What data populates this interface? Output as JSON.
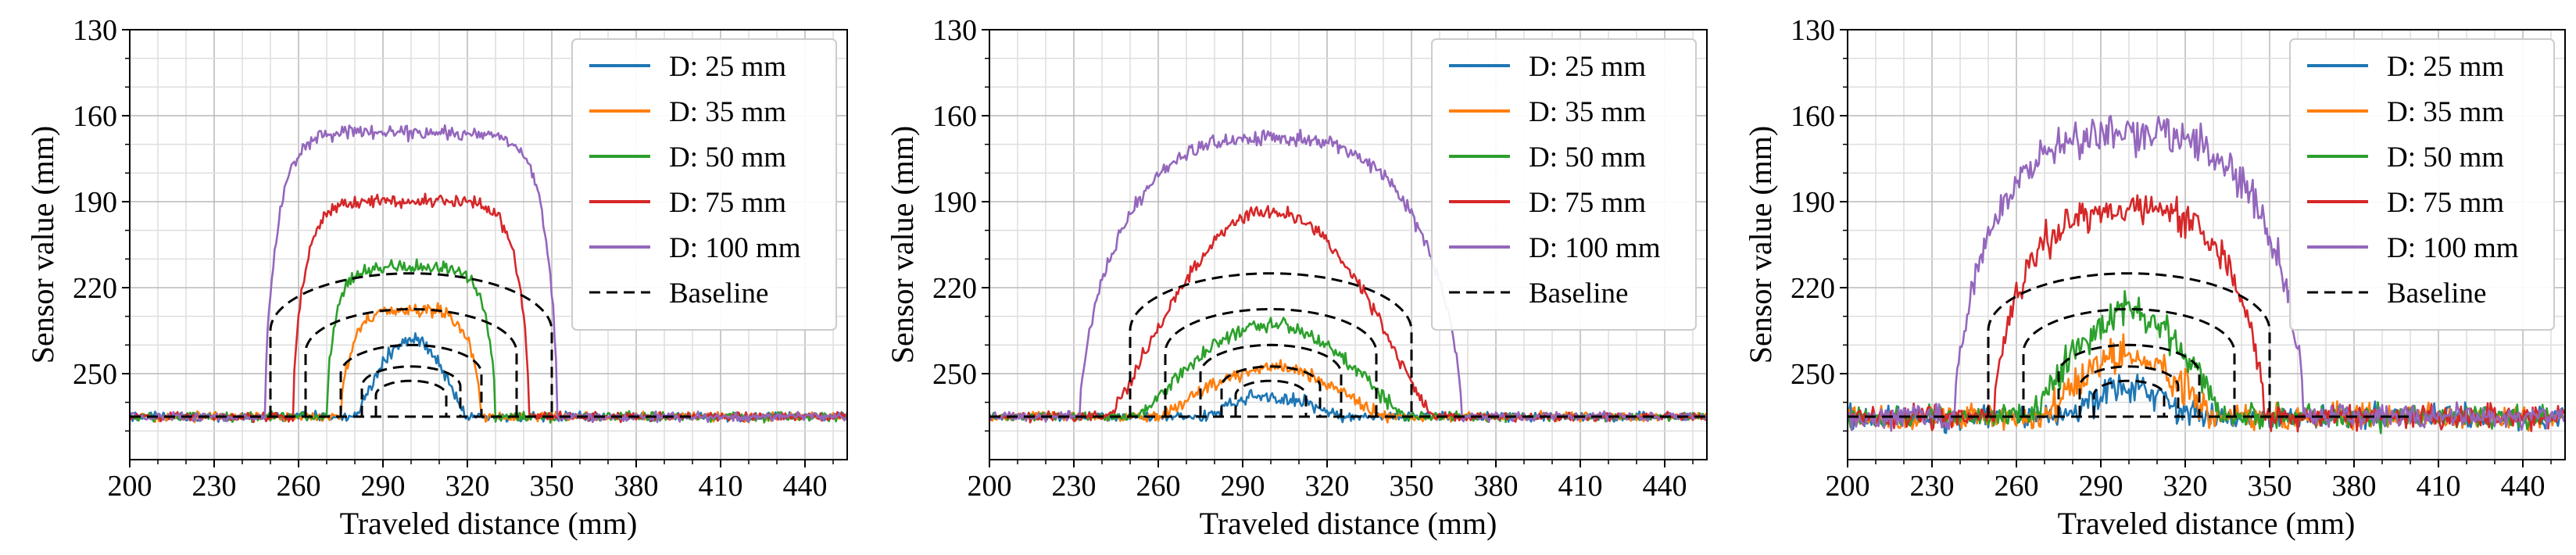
{
  "chart_data": [
    {
      "type": "line",
      "panel": "left",
      "xlabel": "Traveled distance (mm)",
      "ylabel": "Sensor value (mm)",
      "xlim": [
        200,
        455
      ],
      "ylim": [
        130,
        280
      ],
      "y_inverted": true,
      "xticks": [
        200,
        230,
        260,
        290,
        320,
        350,
        380,
        410,
        440
      ],
      "yticks": [
        130,
        160,
        190,
        220,
        250
      ],
      "grid": true,
      "legend": "top-right",
      "baseline_floor": 265,
      "noise": 1.5,
      "series": [
        {
          "name": "D: 25 mm",
          "color": "#1f77b4",
          "kind": "bump",
          "peak": 238,
          "half_width": 20,
          "power": 1.2
        },
        {
          "name": "D: 35 mm",
          "color": "#ff7f0e",
          "kind": "plateau",
          "peak": 228,
          "half_width": 25,
          "power": 4
        },
        {
          "name": "D: 50 mm",
          "color": "#2ca02c",
          "kind": "plateau",
          "peak": 213,
          "half_width": 30,
          "power": 6
        },
        {
          "name": "D: 75 mm",
          "color": "#d62728",
          "kind": "plateau",
          "peak": 190,
          "half_width": 42,
          "power": 7
        },
        {
          "name": "D: 100 mm",
          "color": "#9467bd",
          "kind": "plateau",
          "peak": 166,
          "half_width": 52,
          "power": 8
        },
        {
          "name": "Baseline",
          "color": "#000000",
          "dashed": true,
          "radii": [
            12.5,
            17.5,
            25,
            37.5,
            50
          ],
          "center": 300,
          "x_end": 400
        }
      ]
    },
    {
      "type": "line",
      "panel": "middle",
      "xlabel": "Traveled distance (mm)",
      "ylabel": "Sensor value (mm)",
      "xlim": [
        200,
        455
      ],
      "ylim": [
        130,
        280
      ],
      "y_inverted": true,
      "xticks": [
        200,
        230,
        260,
        290,
        320,
        350,
        380,
        410,
        440
      ],
      "yticks": [
        130,
        160,
        190,
        220,
        250
      ],
      "grid": true,
      "legend": "top-right",
      "baseline_floor": 265,
      "noise": 1.5,
      "series": [
        {
          "name": "D: 25 mm",
          "color": "#1f77b4",
          "kind": "bump",
          "peak": 258,
          "half_width": 25,
          "power": 2
        },
        {
          "name": "D: 35 mm",
          "color": "#ff7f0e",
          "kind": "bump",
          "peak": 248,
          "half_width": 40,
          "power": 2
        },
        {
          "name": "D: 50 mm",
          "color": "#2ca02c",
          "kind": "bump",
          "peak": 233,
          "half_width": 48,
          "power": 2
        },
        {
          "name": "D: 75 mm",
          "color": "#d62728",
          "kind": "bump",
          "peak": 193,
          "half_width": 58,
          "power": 2
        },
        {
          "name": "D: 100 mm",
          "color": "#9467bd",
          "kind": "plateau",
          "peak": 168,
          "half_width": 68,
          "power": 3
        },
        {
          "name": "Baseline",
          "color": "#000000",
          "dashed": true,
          "radii": [
            12.5,
            17.5,
            25,
            37.5,
            50
          ],
          "center": 300,
          "x_end": 455
        }
      ]
    },
    {
      "type": "line",
      "panel": "right",
      "xlabel": "Traveled distance (mm)",
      "ylabel": "Sensor value (mm)",
      "xlim": [
        200,
        455
      ],
      "ylim": [
        130,
        280
      ],
      "y_inverted": true,
      "xticks": [
        200,
        230,
        260,
        290,
        320,
        350,
        380,
        410,
        440
      ],
      "yticks": [
        130,
        160,
        190,
        220,
        250
      ],
      "grid": true,
      "legend": "top-right",
      "baseline_floor": 265,
      "noise": 4,
      "series": [
        {
          "name": "D: 25 mm",
          "color": "#1f77b4",
          "kind": "bump",
          "peak": 254,
          "half_width": 22,
          "power": 2
        },
        {
          "name": "D: 35 mm",
          "color": "#ff7f0e",
          "kind": "bump",
          "peak": 244,
          "half_width": 30,
          "power": 2
        },
        {
          "name": "D: 50 mm",
          "color": "#2ca02c",
          "kind": "bump",
          "peak": 229,
          "half_width": 35,
          "power": 2
        },
        {
          "name": "D: 75 mm",
          "color": "#d62728",
          "kind": "plateau",
          "peak": 193,
          "half_width": 48,
          "power": 3
        },
        {
          "name": "D: 100 mm",
          "color": "#9467bd",
          "kind": "plateau",
          "peak": 166,
          "half_width": 62,
          "power": 3
        },
        {
          "name": "Baseline",
          "color": "#000000",
          "dashed": true,
          "radii": [
            12.5,
            17.5,
            25,
            37.5,
            50
          ],
          "center": 300,
          "x_end": 400
        }
      ]
    }
  ]
}
